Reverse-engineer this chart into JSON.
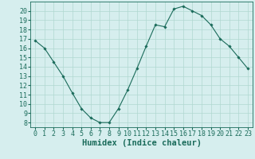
{
  "x": [
    0,
    1,
    2,
    3,
    4,
    5,
    6,
    7,
    8,
    9,
    10,
    11,
    12,
    13,
    14,
    15,
    16,
    17,
    18,
    19,
    20,
    21,
    22,
    23
  ],
  "y": [
    16.8,
    16.0,
    14.5,
    13.0,
    11.2,
    9.5,
    8.5,
    8.0,
    8.0,
    9.5,
    11.5,
    13.8,
    16.2,
    18.5,
    18.3,
    20.2,
    20.5,
    20.0,
    19.5,
    18.5,
    17.0,
    16.2,
    15.0,
    13.8
  ],
  "line_color": "#1a6b5a",
  "marker_color": "#1a6b5a",
  "bg_color": "#d6eeee",
  "grid_color": "#b0d8d0",
  "axis_color": "#1a6b5a",
  "xlabel": "Humidex (Indice chaleur)",
  "ylim_min": 7.5,
  "ylim_max": 21.0,
  "xlim_min": -0.5,
  "xlim_max": 23.5,
  "yticks": [
    8,
    9,
    10,
    11,
    12,
    13,
    14,
    15,
    16,
    17,
    18,
    19,
    20
  ],
  "xticks": [
    0,
    1,
    2,
    3,
    4,
    5,
    6,
    7,
    8,
    9,
    10,
    11,
    12,
    13,
    14,
    15,
    16,
    17,
    18,
    19,
    20,
    21,
    22,
    23
  ],
  "tick_font_size": 6.0,
  "label_font_size": 7.5
}
